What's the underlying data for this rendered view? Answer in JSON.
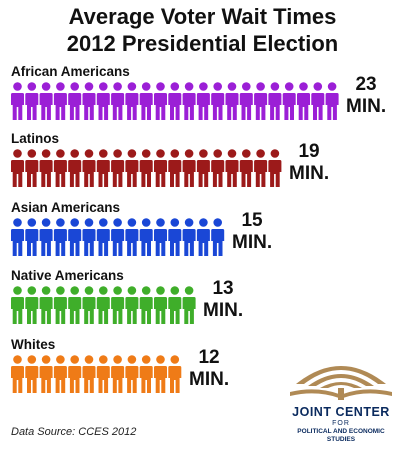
{
  "title_line1": "Average Voter Wait Times",
  "title_line2": "2012 Presidential Election",
  "source": "Data Source: CCES 2012",
  "logo": {
    "name": "JOINT CENTER",
    "for": "FOR",
    "sub1": "POLITICAL AND ECONOMIC",
    "sub2": "STUDIES",
    "colors": {
      "sun": "#b08a55",
      "text": "#0a2a5e"
    }
  },
  "chart_data": {
    "type": "bar",
    "unit": "MIN.",
    "categories": [
      "African Americans",
      "Latinos",
      "Asian Americans",
      "Native Americans",
      "Whites"
    ],
    "values": [
      23,
      19,
      15,
      13,
      12
    ],
    "colors": [
      "#9b1fd6",
      "#9c1a1a",
      "#1a47d6",
      "#3fae2a",
      "#ef7b17"
    ]
  }
}
